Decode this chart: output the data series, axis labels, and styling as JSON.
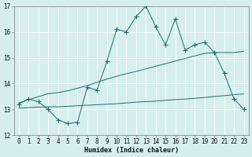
{
  "xlabel": "Humidex (Indice chaleur)",
  "background_color": "#d6eeee",
  "grid_color": "#ffffff",
  "line_color": "#1a7070",
  "xlim": [
    -0.5,
    23.5
  ],
  "ylim": [
    12,
    17
  ],
  "x": [
    0,
    1,
    2,
    3,
    4,
    5,
    6,
    7,
    8,
    9,
    10,
    11,
    12,
    13,
    14,
    15,
    16,
    17,
    18,
    19,
    20,
    21,
    22,
    23
  ],
  "y_main": [
    13.2,
    13.4,
    13.3,
    13.0,
    12.6,
    12.45,
    12.5,
    13.85,
    13.75,
    14.85,
    16.1,
    16.0,
    16.6,
    17.0,
    16.2,
    15.5,
    16.5,
    15.3,
    15.5,
    15.6,
    15.2,
    14.4,
    13.4,
    13.0
  ],
  "y_upper": [
    13.25,
    13.37,
    13.49,
    13.61,
    13.65,
    13.72,
    13.82,
    13.92,
    14.05,
    14.17,
    14.28,
    14.38,
    14.47,
    14.57,
    14.67,
    14.77,
    14.87,
    14.97,
    15.07,
    15.17,
    15.2,
    15.2,
    15.2,
    15.25
  ],
  "y_lower": [
    13.05,
    13.07,
    13.09,
    13.1,
    13.1,
    13.12,
    13.14,
    13.16,
    13.18,
    13.2,
    13.22,
    13.25,
    13.28,
    13.3,
    13.32,
    13.35,
    13.38,
    13.4,
    13.43,
    13.46,
    13.5,
    13.53,
    13.57,
    13.6
  ],
  "yticks": [
    12,
    13,
    14,
    15,
    16,
    17
  ],
  "xticks": [
    0,
    1,
    2,
    3,
    4,
    5,
    6,
    7,
    8,
    9,
    10,
    11,
    12,
    13,
    14,
    15,
    16,
    17,
    18,
    19,
    20,
    21,
    22,
    23
  ],
  "xlabel_fontsize": 6,
  "tick_fontsize": 5.5,
  "linewidth": 0.7,
  "markersize": 2.5
}
